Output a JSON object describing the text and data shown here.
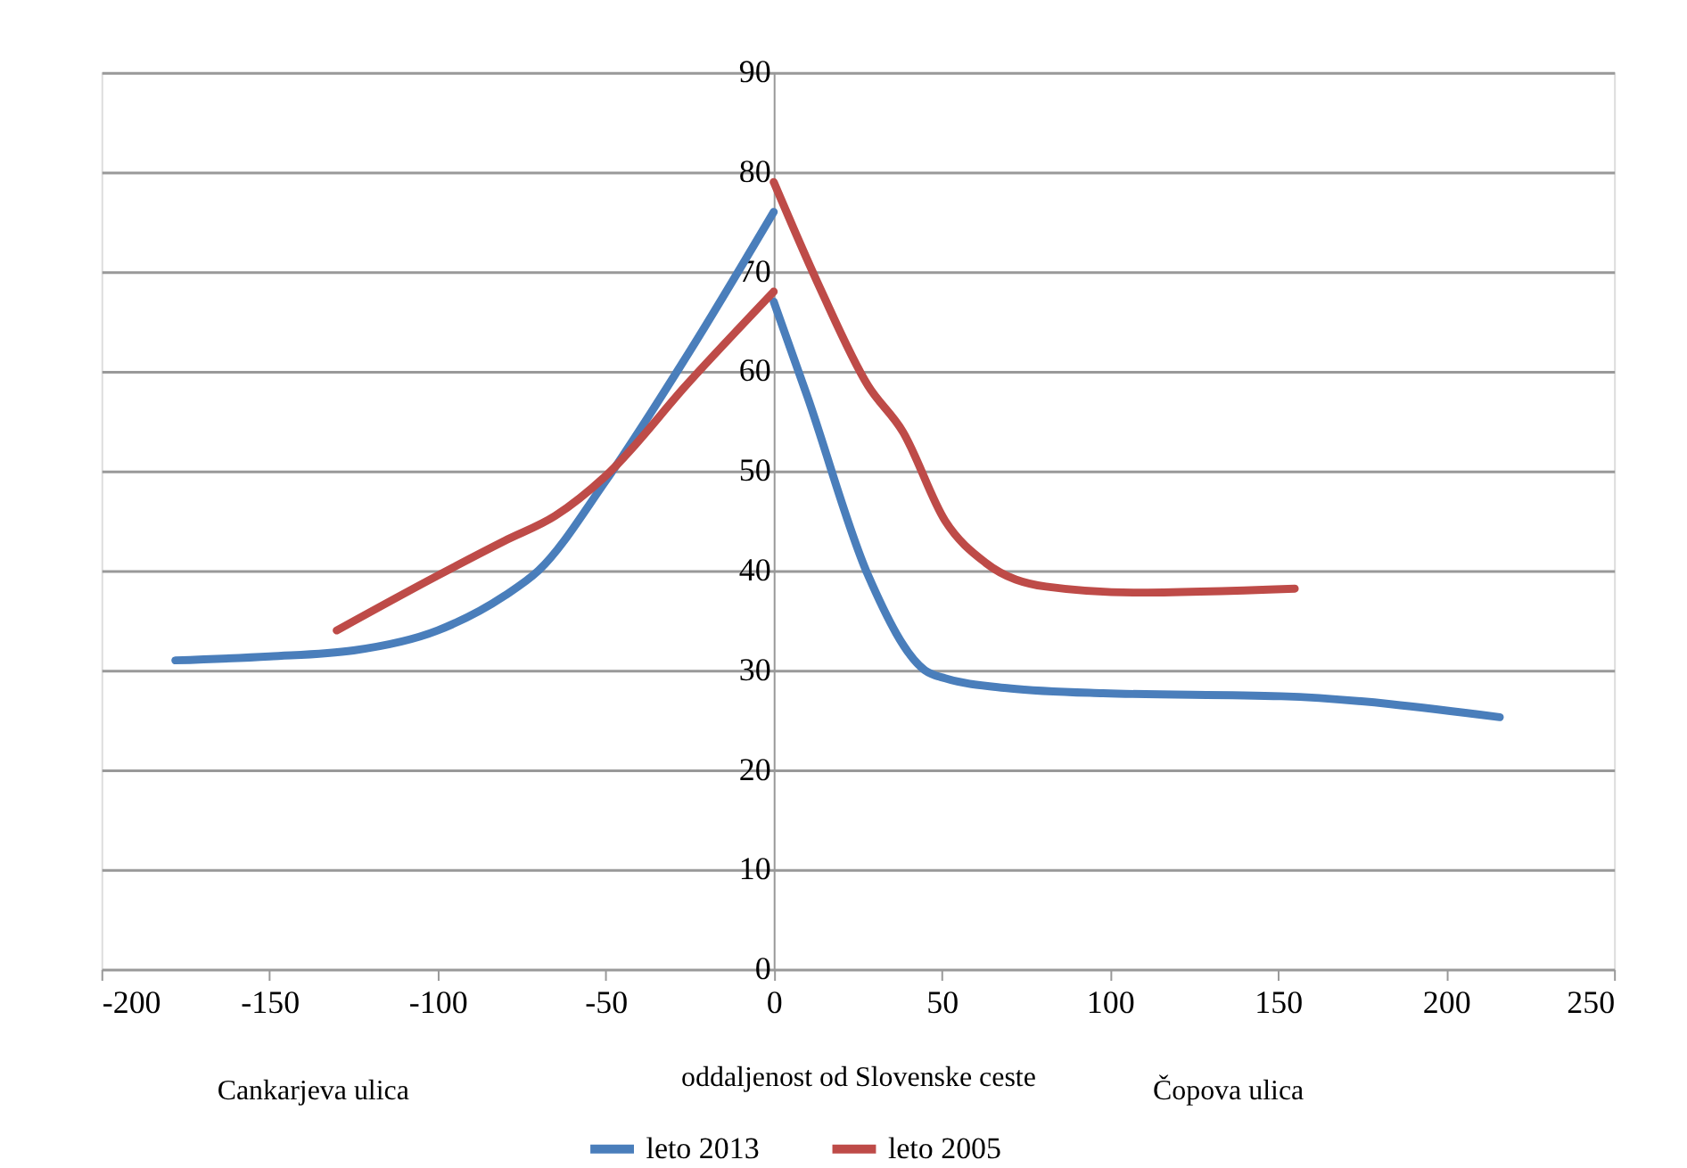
{
  "chart_data": {
    "type": "line",
    "xlabel": "oddaljenost od Slovenske ceste",
    "annotations": [
      "Cankarjeva ulica",
      "Čopova ulica"
    ],
    "xlim": [
      -200,
      250
    ],
    "xticks": [
      -200,
      -150,
      -100,
      -50,
      0,
      50,
      100,
      150,
      200,
      250
    ],
    "ylim": [
      0,
      90
    ],
    "yticks": [
      0,
      10,
      20,
      30,
      40,
      50,
      60,
      70,
      80,
      90
    ],
    "grid": "y",
    "legend": "bottom",
    "marker": "none",
    "line_style": "solid",
    "series": [
      {
        "name": "leto 2013",
        "color": "#4a7ebb",
        "x": [
          -178,
          -150,
          -125,
          -100,
          -80,
          -70,
          -50,
          -25,
          0,
          0,
          10,
          28,
          45,
          51,
          70,
          98,
          151,
          216
        ],
        "values": [
          31,
          31.4,
          32,
          34,
          37.5,
          40,
          49,
          62,
          76,
          67,
          57.5,
          39.6,
          30,
          29.2,
          28.2,
          27.7,
          27.4,
          25.3
        ]
      },
      {
        "name": "leto 2005",
        "color": "#be4b48",
        "x": [
          -130,
          -100,
          -80,
          -65,
          -50,
          -25,
          0,
          0,
          14,
          28,
          38.5,
          51,
          63,
          81,
          107,
          155
        ],
        "values": [
          34,
          39.5,
          43,
          45.5,
          49.5,
          59,
          68,
          79,
          68.2,
          58.6,
          53.9,
          45,
          40.8,
          38.4,
          37.8,
          38.2
        ]
      }
    ]
  }
}
